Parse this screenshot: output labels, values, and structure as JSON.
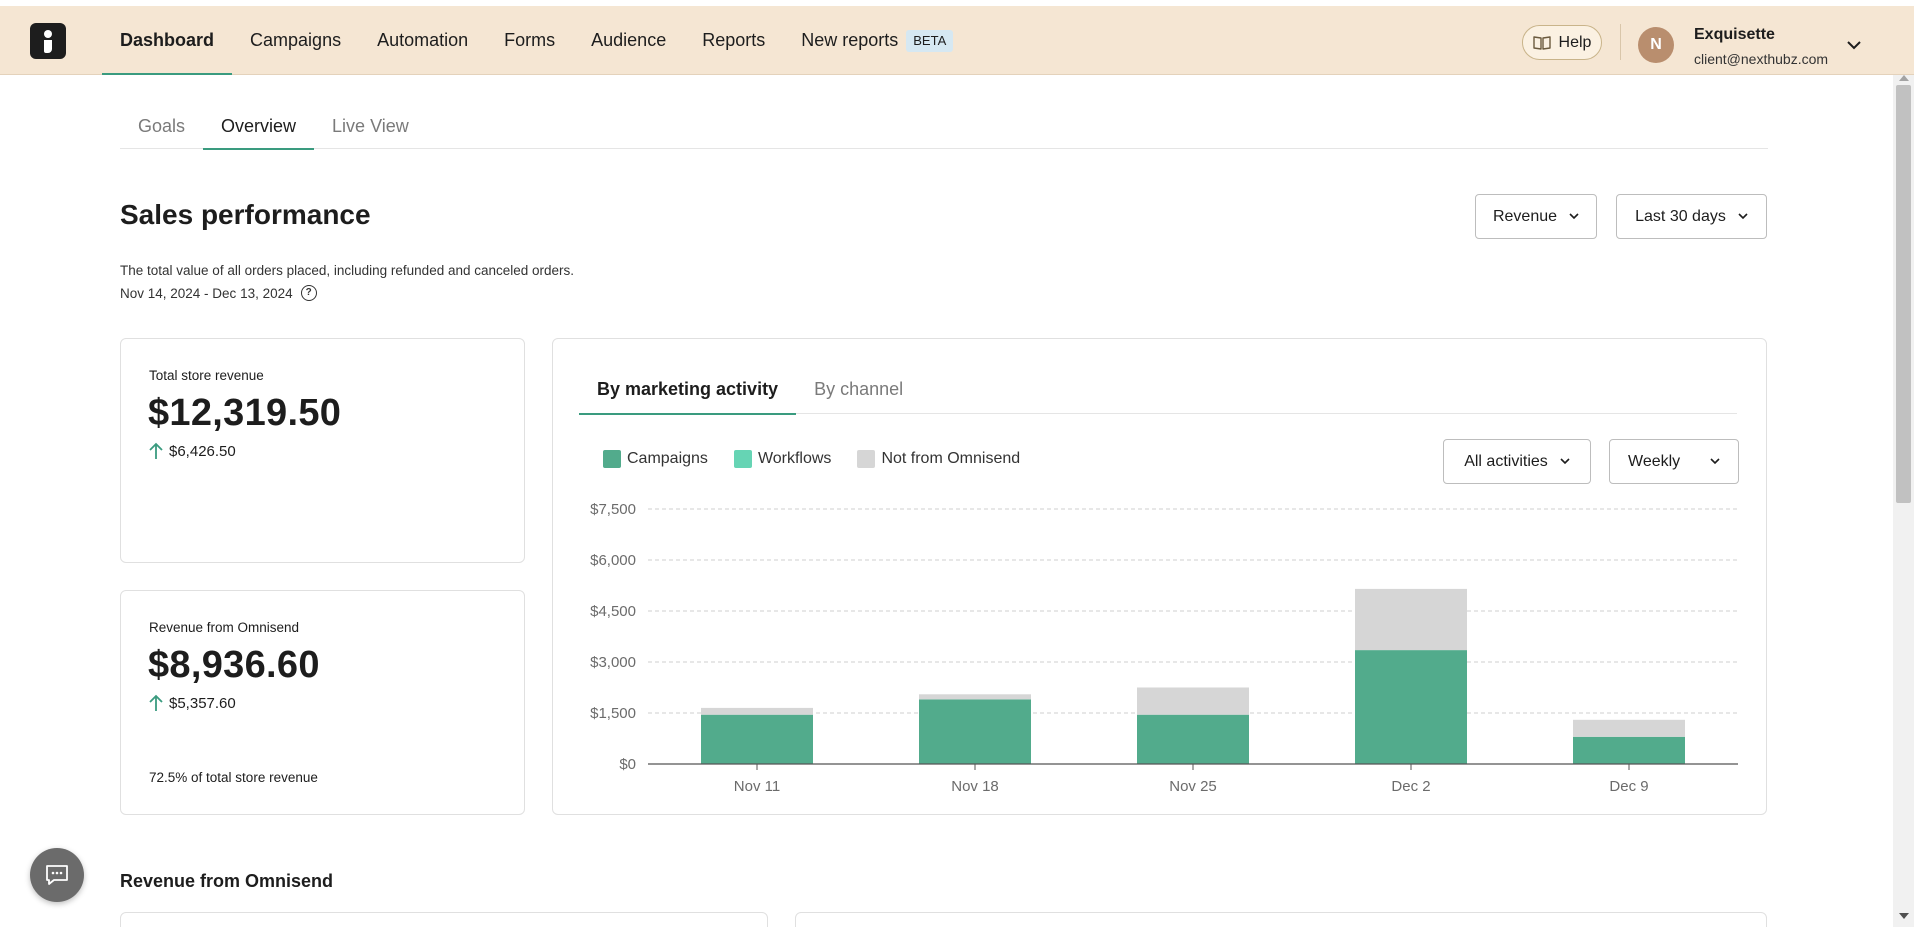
{
  "nav": {
    "items": [
      {
        "label": "Dashboard",
        "active": true
      },
      {
        "label": "Campaigns"
      },
      {
        "label": "Automation"
      },
      {
        "label": "Forms"
      },
      {
        "label": "Audience"
      },
      {
        "label": "Reports"
      },
      {
        "label": "New reports"
      }
    ],
    "beta_label": "BETA",
    "help_label": "Help",
    "user": {
      "initial": "N",
      "name": "Exquisette",
      "email": "client@nexthubz.com"
    }
  },
  "subtabs": [
    {
      "label": "Goals"
    },
    {
      "label": "Overview",
      "active": true
    },
    {
      "label": "Live View"
    }
  ],
  "page": {
    "title": "Sales performance",
    "description": "The total value of all orders placed, including refunded and canceled orders.",
    "date_range": "Nov 14, 2024 - Dec 13, 2024",
    "metric_dropdown": "Revenue",
    "period_dropdown": "Last 30 days"
  },
  "cards": {
    "total": {
      "label": "Total store revenue",
      "value": "$12,319.50",
      "delta": "$6,426.50"
    },
    "omnisend": {
      "label": "Revenue from Omnisend",
      "value": "$8,936.60",
      "delta": "$5,357.60",
      "footer_pct": "72.5%",
      "footer_text": " of total store revenue"
    }
  },
  "chart_panel": {
    "tabs": [
      {
        "label": "By marketing activity",
        "active": true
      },
      {
        "label": "By channel"
      }
    ],
    "activity_dropdown": "All activities",
    "interval_dropdown": "Weekly",
    "legend": [
      {
        "name": "Campaigns",
        "color": "#52ab8c"
      },
      {
        "name": "Workflows",
        "color": "#66d4b4"
      },
      {
        "name": "Not from Omnisend",
        "color": "#d6d6d6"
      }
    ]
  },
  "chart_data": {
    "type": "bar",
    "stacked": true,
    "categories": [
      "Nov 11",
      "Nov 18",
      "Nov 25",
      "Dec 2",
      "Dec 9"
    ],
    "series": [
      {
        "name": "Campaigns",
        "color": "#52ab8c",
        "values": [
          1450,
          1900,
          1450,
          3350,
          800
        ]
      },
      {
        "name": "Workflows",
        "color": "#66d4b4",
        "values": [
          0,
          0,
          0,
          0,
          0
        ]
      },
      {
        "name": "Not from Omnisend",
        "color": "#d6d6d6",
        "values": [
          200,
          150,
          800,
          1800,
          500
        ]
      }
    ],
    "ylim": [
      0,
      7500
    ],
    "yticks": [
      0,
      1500,
      3000,
      4500,
      6000,
      7500
    ],
    "ytick_labels": [
      "$0",
      "$1,500",
      "$3,000",
      "$4,500",
      "$6,000",
      "$7,500"
    ],
    "grid": true
  },
  "sections": {
    "revenue_title": "Revenue from Omnisend"
  }
}
